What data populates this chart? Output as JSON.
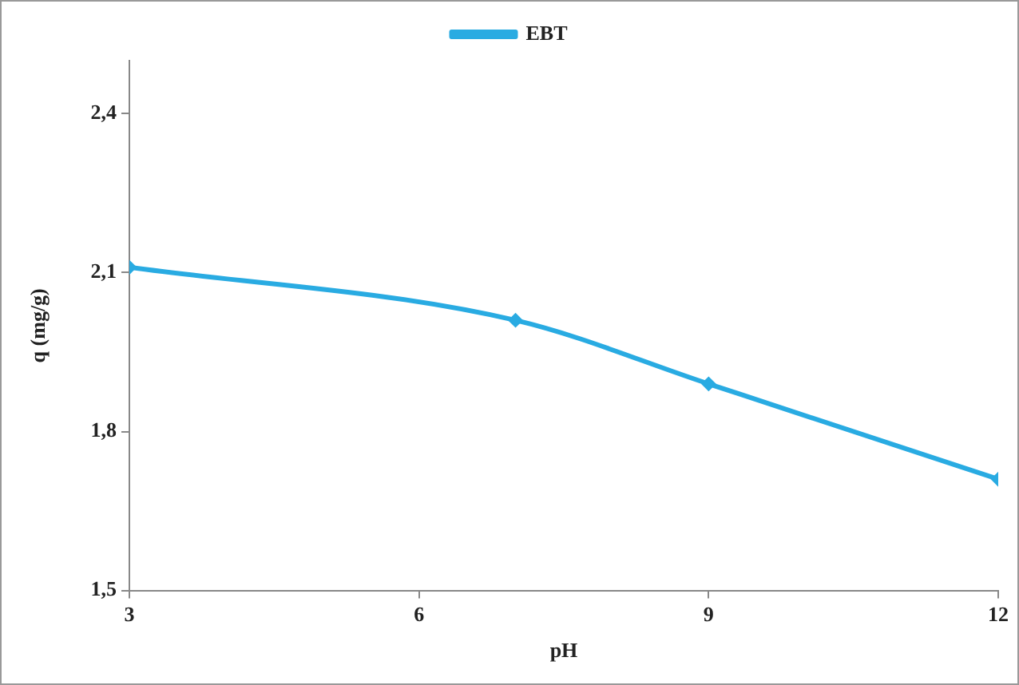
{
  "chart_data": {
    "type": "line",
    "xlabel": "pH",
    "ylabel": "q (mg/g)",
    "x": [
      3,
      7,
      9,
      12
    ],
    "series": [
      {
        "name": "EBT",
        "color": "#29abe2",
        "values": [
          2.11,
          2.01,
          1.89,
          1.71
        ]
      }
    ],
    "xlim": [
      3,
      12
    ],
    "xticks": [
      3,
      6,
      9,
      12
    ],
    "ylim": [
      1.5,
      2.5
    ],
    "yticks": [
      {
        "value": 1.5,
        "label": "1,5"
      },
      {
        "value": 1.8,
        "label": "1,8"
      },
      {
        "value": 2.1,
        "label": "2,1"
      },
      {
        "value": 2.4,
        "label": "2,4"
      }
    ],
    "grid": false,
    "legend": "top",
    "marker": "diamond",
    "line_style": "solid"
  }
}
